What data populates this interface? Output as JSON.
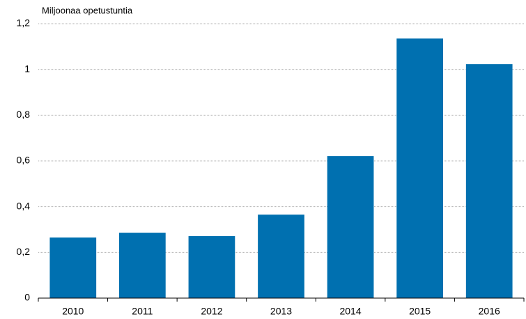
{
  "chart_data": {
    "type": "bar",
    "y_axis_label": "Miljoonaa opetustuntia",
    "categories": [
      "2010",
      "2011",
      "2012",
      "2013",
      "2014",
      "2015",
      "2016"
    ],
    "values": [
      0.265,
      0.286,
      0.271,
      0.365,
      0.621,
      1.135,
      1.023
    ],
    "color": "#0070b0",
    "ylim": [
      0,
      1.2
    ],
    "yticks": [
      0,
      {
        "value": 0.2,
        "label": "0,2"
      },
      {
        "value": 0.4,
        "label": "0,4"
      },
      {
        "value": 0.6,
        "label": "0,6"
      },
      {
        "value": 0.8,
        "label": "0,8"
      },
      1,
      {
        "value": 1.2,
        "label": "1,2"
      }
    ],
    "grid": true
  }
}
